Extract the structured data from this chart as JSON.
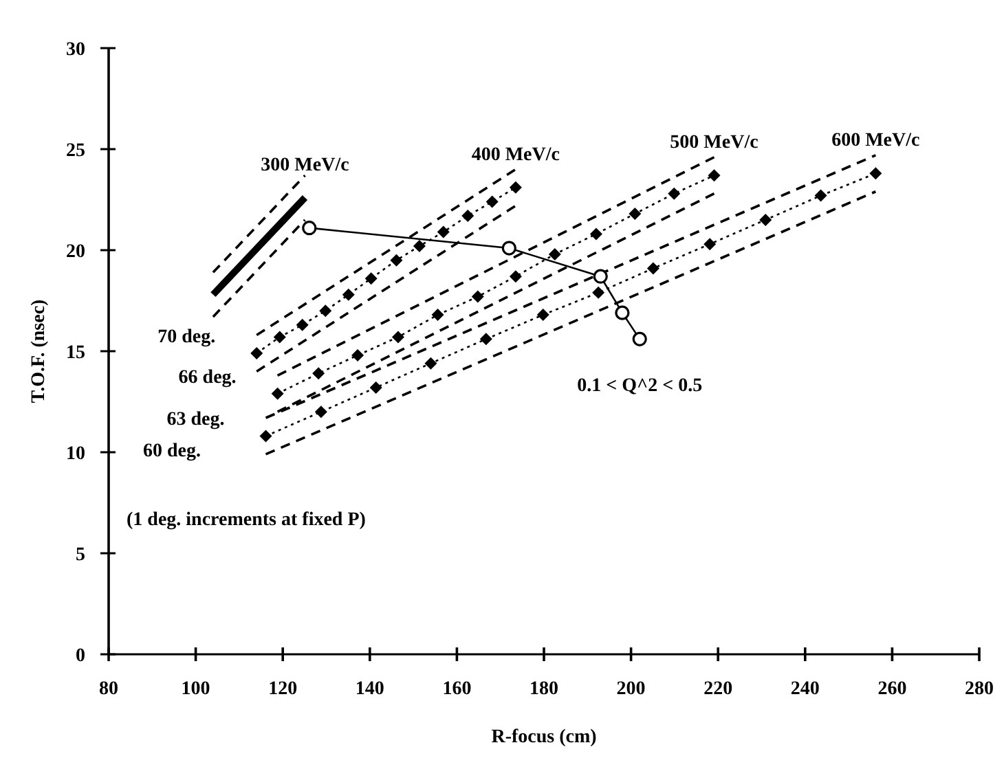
{
  "chart_data": {
    "type": "line",
    "xlabel": "R-focus (cm)",
    "ylabel": "T.O.F. (nsec)",
    "xlim": [
      80,
      280
    ],
    "xticks": [
      80,
      100,
      120,
      140,
      160,
      180,
      200,
      220,
      240,
      260,
      280
    ],
    "ylim": [
      0,
      30
    ],
    "yticks": [
      0,
      5,
      10,
      15,
      20,
      25,
      30
    ],
    "grid": false,
    "annotations": [
      {
        "text": "70 deg.",
        "x": 114.0,
        "y": 14.9
      },
      {
        "text": "66 deg.",
        "x": 118.8,
        "y": 12.9
      },
      {
        "text": "63 deg.",
        "x": 116.1,
        "y": 10.8
      },
      "60 deg.",
      "(1 deg. increments at fixed P)"
    ],
    "series": [
      {
        "name": "300 MeV/c",
        "color": "#000000",
        "marker": "none",
        "line_style": "solid",
        "x": [
          104.0,
          125.1
        ],
        "values": [
          17.8,
          22.6
        ]
      },
      {
        "color": "#000000",
        "marker": "none",
        "line_style": "dashed",
        "x": [
          104.0,
          125.1
        ],
        "values": [
          18.9,
          23.7
        ]
      },
      {
        "color": "#000000",
        "marker": "none",
        "line_style": "dashed",
        "x": [
          104.0,
          125.1
        ],
        "values": [
          16.7,
          21.5
        ]
      },
      {
        "name": "400 MeV/c",
        "color": "#000000",
        "marker": "diamond",
        "line_style": "dotted",
        "x": [
          114.0,
          119.3,
          124.5,
          129.8,
          135.1,
          140.3,
          146.1,
          151.4,
          156.9,
          162.5,
          168.1,
          173.5
        ],
        "values": [
          14.9,
          15.7,
          16.3,
          17.0,
          17.8,
          18.6,
          19.5,
          20.2,
          20.9,
          21.7,
          22.4,
          23.1
        ]
      },
      {
        "color": "#000000",
        "marker": "none",
        "line_style": "dashed",
        "x": [
          114.0,
          173.5
        ],
        "values": [
          15.8,
          24.0
        ]
      },
      {
        "color": "#000000",
        "marker": "none",
        "line_style": "dashed",
        "x": [
          114.0,
          173.5
        ],
        "values": [
          14.0,
          22.2
        ]
      },
      {
        "name": "500 MeV/c",
        "color": "#000000",
        "marker": "diamond",
        "line_style": "dotted",
        "x": [
          118.8,
          128.2,
          137.2,
          146.5,
          155.6,
          164.8,
          173.5,
          182.5,
          192.0,
          200.9,
          209.9,
          219.1
        ],
        "values": [
          12.9,
          13.9,
          14.8,
          15.7,
          16.8,
          17.7,
          18.7,
          19.8,
          20.8,
          21.8,
          22.8,
          23.7
        ]
      },
      {
        "color": "#000000",
        "marker": "none",
        "line_style": "dashed",
        "x": [
          118.8,
          219.1
        ],
        "values": [
          13.8,
          24.6
        ]
      },
      {
        "color": "#000000",
        "marker": "none",
        "line_style": "dashed",
        "x": [
          118.8,
          219.1
        ],
        "values": [
          12.0,
          22.8
        ]
      },
      {
        "name": "600 MeV/c",
        "color": "#000000",
        "marker": "diamond",
        "line_style": "dotted",
        "x": [
          116.1,
          128.8,
          141.4,
          154.0,
          166.7,
          179.8,
          192.5,
          205.1,
          218.1,
          230.9,
          243.6,
          256.2
        ],
        "values": [
          10.8,
          12.0,
          13.2,
          14.4,
          15.6,
          16.8,
          17.9,
          19.1,
          20.3,
          21.5,
          22.7,
          23.8
        ]
      },
      {
        "color": "#000000",
        "marker": "none",
        "line_style": "dashed",
        "x": [
          116.1,
          256.2
        ],
        "values": [
          11.7,
          24.7
        ]
      },
      {
        "color": "#000000",
        "marker": "none",
        "line_style": "dashed",
        "x": [
          116.1,
          256.2
        ],
        "values": [
          9.9,
          22.9
        ]
      },
      {
        "name": "0.1 < Q^2 < 0.5",
        "color": "#000000",
        "marker": "circle",
        "line_style": "solid",
        "x": [
          126.1,
          172.0,
          193.0,
          198.0,
          202.0
        ],
        "values": [
          21.1,
          20.1,
          18.7,
          16.9,
          15.6
        ]
      }
    ]
  }
}
